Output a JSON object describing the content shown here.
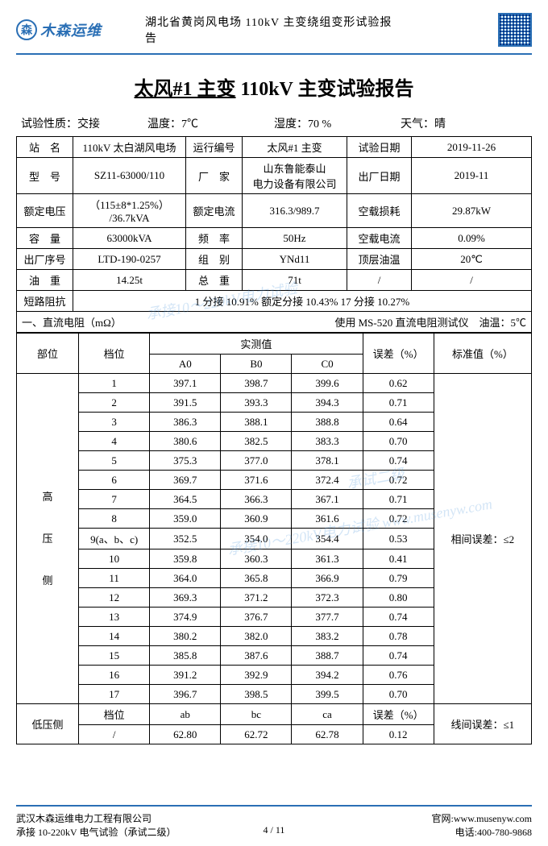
{
  "header": {
    "logo_char": "森",
    "logo_text": "木森运维",
    "subtitle": "湖北省黄岗风电场 110kV 主变绕组变形试验报告"
  },
  "title": {
    "p1": "太风#1 主变",
    "p2": " 110kV 主变试验报告"
  },
  "conditions": {
    "c1l": "试验性质：",
    "c1v": "交接",
    "c2l": "温度：",
    "c2v": "7℃",
    "c3l": "湿度：",
    "c3v": "70 %",
    "c4l": "天气：",
    "c4v": "晴"
  },
  "info": {
    "r1": {
      "l1": "站　名",
      "v1": "110kV 太白湖风电场",
      "l2": "运行编号",
      "v2": "太风#1 主变",
      "l3": "试验日期",
      "v3": "2019-11-26"
    },
    "r2": {
      "l1": "型　号",
      "v1": "SZ11-63000/110",
      "l2": "厂　家",
      "v2": "山东鲁能泰山\n电力设备有限公司",
      "l3": "出厂日期",
      "v3": "2019-11"
    },
    "r3": {
      "l1": "额定电压",
      "v1": "（115±8*1.25%）\n/36.7kVA",
      "l2": "额定电流",
      "v2": "316.3/989.7",
      "l3": "空载损耗",
      "v3": "29.87kW"
    },
    "r4": {
      "l1": "容　量",
      "v1": "63000kVA",
      "l2": "频　率",
      "v2": "50Hz",
      "l3": "空载电流",
      "v3": "0.09%"
    },
    "r5": {
      "l1": "出厂序号",
      "v1": "LTD-190-0257",
      "l2": "组　别",
      "v2": "YNd11",
      "l3": "顶层油温",
      "v3": "20℃"
    },
    "r6": {
      "l1": "油　重",
      "v1": "14.25t",
      "l2": "总　重",
      "v2": "71t",
      "l3": "/",
      "v3": "/"
    },
    "r7": {
      "l1": "短路阻抗",
      "v1": "1 分接 10.91% 额定分接 10.43% 17 分接 10.27%"
    }
  },
  "dc": {
    "section_title": "一、直流电阻（mΩ）",
    "section_right": "使用 MS-520 直流电阻测试仪　油温：5℃",
    "head": {
      "h1": "部位",
      "h2": "档位",
      "h3": "实测值",
      "h31": "A0",
      "h32": "B0",
      "h33": "C0",
      "h4": "误差（%）",
      "h5": "标准值（%）"
    },
    "hv_label": "高\n\n压\n\n侧",
    "hv_std_label": "相间误差：≤2",
    "lv_label": "低压侧",
    "lv_std_label": "线间误差：≤1",
    "hv_rows": [
      {
        "pos": "1",
        "a": "397.1",
        "b": "398.7",
        "c": "399.6",
        "e": "0.62"
      },
      {
        "pos": "2",
        "a": "391.5",
        "b": "393.3",
        "c": "394.3",
        "e": "0.71"
      },
      {
        "pos": "3",
        "a": "386.3",
        "b": "388.1",
        "c": "388.8",
        "e": "0.64"
      },
      {
        "pos": "4",
        "a": "380.6",
        "b": "382.5",
        "c": "383.3",
        "e": "0.70"
      },
      {
        "pos": "5",
        "a": "375.3",
        "b": "377.0",
        "c": "378.1",
        "e": "0.74"
      },
      {
        "pos": "6",
        "a": "369.7",
        "b": "371.6",
        "c": "372.4",
        "e": "0.72"
      },
      {
        "pos": "7",
        "a": "364.5",
        "b": "366.3",
        "c": "367.1",
        "e": "0.71"
      },
      {
        "pos": "8",
        "a": "359.0",
        "b": "360.9",
        "c": "361.6",
        "e": "0.72"
      },
      {
        "pos": "9(a、b、c)",
        "a": "352.5",
        "b": "354.0",
        "c": "354.4",
        "e": "0.53"
      },
      {
        "pos": "10",
        "a": "359.8",
        "b": "360.3",
        "c": "361.3",
        "e": "0.41"
      },
      {
        "pos": "11",
        "a": "364.0",
        "b": "365.8",
        "c": "366.9",
        "e": "0.79"
      },
      {
        "pos": "12",
        "a": "369.3",
        "b": "371.2",
        "c": "372.3",
        "e": "0.80"
      },
      {
        "pos": "13",
        "a": "374.9",
        "b": "376.7",
        "c": "377.7",
        "e": "0.74"
      },
      {
        "pos": "14",
        "a": "380.2",
        "b": "382.0",
        "c": "383.2",
        "e": "0.78"
      },
      {
        "pos": "15",
        "a": "385.8",
        "b": "387.6",
        "c": "388.7",
        "e": "0.74"
      },
      {
        "pos": "16",
        "a": "391.2",
        "b": "392.9",
        "c": "394.2",
        "e": "0.76"
      },
      {
        "pos": "17",
        "a": "396.7",
        "b": "398.5",
        "c": "399.5",
        "e": "0.70"
      }
    ],
    "lv_head": {
      "pos": "档位",
      "a": "ab",
      "b": "bc",
      "c": "ca",
      "e": "误差（%）"
    },
    "lv_row": {
      "pos": "/",
      "a": "62.80",
      "b": "62.72",
      "c": "62.78",
      "e": "0.12"
    }
  },
  "footer": {
    "company": "武汉木森运维电力工程有限公司",
    "scope": "承接 10-220kV 电气试验（承试二级）",
    "site_l": "官网:",
    "site_v": "www.musenyw.com",
    "tel_l": "电话:",
    "tel_v": "400-780-9868",
    "page": "4 / 11"
  },
  "colors": {
    "brand": "#2a6fb5",
    "text": "#000000",
    "bg": "#ffffff"
  }
}
